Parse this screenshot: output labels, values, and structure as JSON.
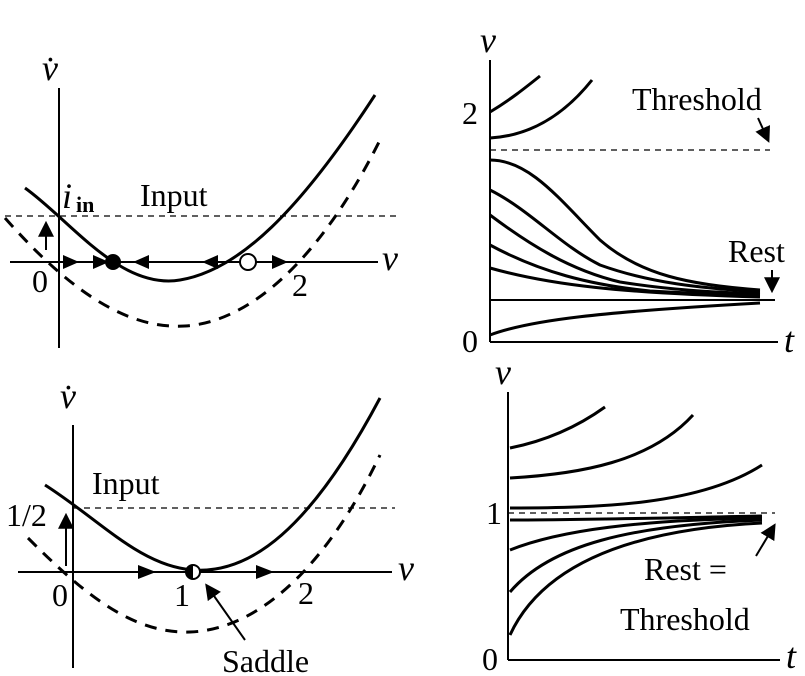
{
  "panels": {
    "top_left": {
      "y_axis": "v̇",
      "y_axis_sub": "in",
      "y_axis_i": "i",
      "input_label": "Input",
      "x_axis": "v",
      "tick_0": "0",
      "tick_2": "2"
    },
    "top_right": {
      "y_axis": "v",
      "x_axis": "t",
      "tick_2": "2",
      "tick_0": "0",
      "threshold_label": "Threshold",
      "rest_label": "Rest"
    },
    "bottom_left": {
      "y_axis": "v̇",
      "input_label": "Input",
      "tick_half": "1/2",
      "x_axis": "v",
      "tick_0": "0",
      "tick_1": "1",
      "tick_2": "2",
      "saddle_label": "Saddle"
    },
    "bottom_right": {
      "y_axis": "v",
      "x_axis": "t",
      "tick_1": "1",
      "tick_0": "0",
      "rest_label_1": "Rest =",
      "rest_label_2": "Threshold"
    }
  }
}
